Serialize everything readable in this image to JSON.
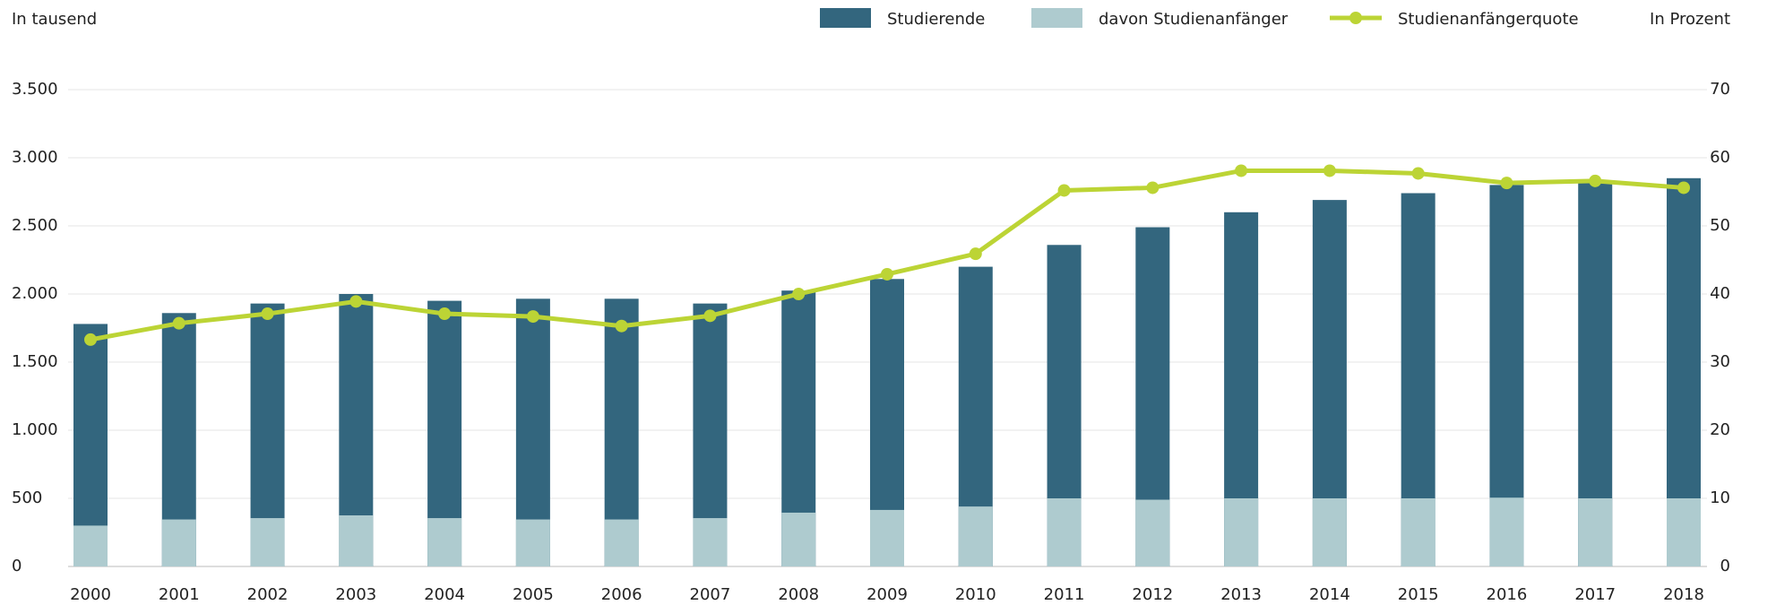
{
  "chart_data": {
    "type": "bar-line",
    "y_label": "In tausend",
    "y2_label": "In Prozent",
    "categories": [
      "2000",
      "2001",
      "2002",
      "2003",
      "2004",
      "2005",
      "2006",
      "2007",
      "2008",
      "2009",
      "2010",
      "2011",
      "2012",
      "2013",
      "2014",
      "2015",
      "2016",
      "2017",
      "2018"
    ],
    "series": [
      {
        "name": "Studierende",
        "type": "bar",
        "color": "#33667e",
        "values": [
          1780,
          1860,
          1930,
          2000,
          1950,
          1965,
          1965,
          1930,
          2025,
          2110,
          2200,
          2360,
          2490,
          2600,
          2690,
          2740,
          2800,
          2820,
          2850
        ]
      },
      {
        "name": "davon Studienanfänger",
        "type": "bar",
        "color": "#aecbcf",
        "values": [
          300,
          345,
          355,
          375,
          355,
          345,
          345,
          355,
          395,
          415,
          440,
          500,
          490,
          500,
          500,
          500,
          505,
          500,
          500
        ]
      },
      {
        "name": "Studienanfängerquote",
        "type": "line",
        "axis": "y2",
        "color": "#bcd435",
        "values": [
          33.3,
          35.7,
          37.1,
          38.9,
          37.1,
          36.7,
          35.3,
          36.8,
          40.0,
          42.9,
          45.9,
          55.2,
          55.6,
          58.1,
          58.1,
          57.7,
          56.3,
          56.6,
          55.6
        ]
      }
    ],
    "ylim": [
      0,
      3500
    ],
    "yticks": [
      0,
      500,
      {
        "value": 1000,
        "label": "1.000"
      },
      {
        "value": 1500,
        "label": "1.500"
      },
      {
        "value": 2000,
        "label": "2.000"
      },
      {
        "value": 2500,
        "label": "2.500"
      },
      {
        "value": 3000,
        "label": "3.000"
      },
      {
        "value": 3500,
        "label": "3.500"
      }
    ],
    "y2lim": [
      0,
      70
    ],
    "y2ticks": [
      0,
      10,
      20,
      30,
      40,
      50,
      60,
      70
    ],
    "grid": true
  }
}
